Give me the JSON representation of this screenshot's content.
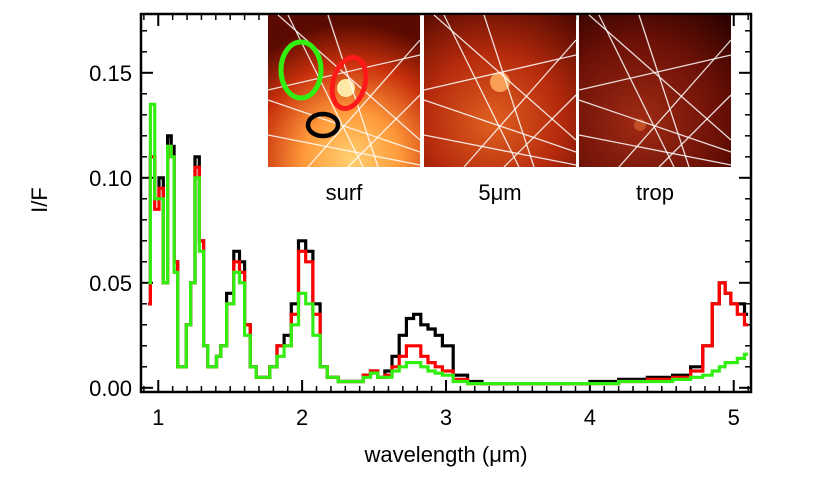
{
  "chart_data": {
    "type": "line",
    "title": "",
    "xlabel": "wavelength (μm)",
    "ylabel": "I/F",
    "xlim": [
      0.88,
      5.12
    ],
    "ylim": [
      -0.002,
      0.178
    ],
    "xticks": [
      {
        "value": 1,
        "label": "1"
      },
      {
        "value": 2,
        "label": "2"
      },
      {
        "value": 3,
        "label": "3"
      },
      {
        "value": 4,
        "label": "4"
      },
      {
        "value": 5,
        "label": "5"
      }
    ],
    "yticks": [
      {
        "value": 0.0,
        "label": "0.00"
      },
      {
        "value": 0.05,
        "label": "0.05"
      },
      {
        "value": 0.1,
        "label": "0.10"
      },
      {
        "value": 0.15,
        "label": "0.15"
      }
    ],
    "x": [
      0.93,
      0.96,
      0.99,
      1.02,
      1.05,
      1.08,
      1.1,
      1.12,
      1.15,
      1.18,
      1.21,
      1.24,
      1.27,
      1.3,
      1.33,
      1.36,
      1.39,
      1.42,
      1.45,
      1.5,
      1.55,
      1.58,
      1.62,
      1.66,
      1.7,
      1.75,
      1.8,
      1.85,
      1.9,
      1.95,
      2.0,
      2.05,
      2.1,
      2.15,
      2.2,
      2.3,
      2.4,
      2.45,
      2.5,
      2.55,
      2.6,
      2.65,
      2.7,
      2.75,
      2.8,
      2.85,
      2.9,
      2.95,
      3.0,
      3.1,
      3.2,
      3.3,
      3.5,
      3.7,
      3.9,
      4.1,
      4.3,
      4.5,
      4.65,
      4.75,
      4.82,
      4.88,
      4.92,
      4.96,
      5.0,
      5.05,
      5.1
    ],
    "series": [
      {
        "name": "black",
        "color": "#000000",
        "values": [
          0.04,
          0.11,
          0.09,
          0.1,
          0.05,
          0.12,
          0.115,
          0.06,
          0.01,
          0.01,
          0.03,
          0.05,
          0.11,
          0.07,
          0.02,
          0.01,
          0.01,
          0.015,
          0.02,
          0.045,
          0.065,
          0.06,
          0.03,
          0.01,
          0.005,
          0.005,
          0.01,
          0.02,
          0.025,
          0.04,
          0.07,
          0.065,
          0.04,
          0.01,
          0.005,
          0.003,
          0.003,
          0.006,
          0.008,
          0.005,
          0.008,
          0.015,
          0.025,
          0.033,
          0.035,
          0.03,
          0.028,
          0.025,
          0.02,
          0.006,
          0.003,
          0.002,
          0.002,
          0.002,
          0.002,
          0.003,
          0.004,
          0.005,
          0.006,
          0.01,
          0.02,
          0.04,
          0.05,
          0.045,
          0.04,
          0.04,
          0.035
        ]
      },
      {
        "name": "red",
        "color": "#ff0000",
        "values": [
          0.04,
          0.11,
          0.085,
          0.095,
          0.05,
          0.115,
          0.11,
          0.06,
          0.01,
          0.01,
          0.03,
          0.05,
          0.105,
          0.07,
          0.02,
          0.01,
          0.01,
          0.015,
          0.02,
          0.04,
          0.06,
          0.055,
          0.03,
          0.01,
          0.005,
          0.005,
          0.01,
          0.02,
          0.02,
          0.035,
          0.065,
          0.06,
          0.035,
          0.01,
          0.005,
          0.003,
          0.003,
          0.006,
          0.008,
          0.005,
          0.006,
          0.01,
          0.015,
          0.02,
          0.02,
          0.015,
          0.012,
          0.01,
          0.008,
          0.004,
          0.002,
          0.002,
          0.002,
          0.002,
          0.002,
          0.002,
          0.003,
          0.004,
          0.005,
          0.008,
          0.02,
          0.04,
          0.05,
          0.045,
          0.04,
          0.035,
          0.03
        ]
      },
      {
        "name": "green",
        "color": "#33ee11",
        "values": [
          0.05,
          0.135,
          0.09,
          0.09,
          0.05,
          0.115,
          0.11,
          0.055,
          0.01,
          0.01,
          0.03,
          0.05,
          0.1,
          0.065,
          0.02,
          0.01,
          0.01,
          0.015,
          0.02,
          0.04,
          0.055,
          0.05,
          0.025,
          0.01,
          0.005,
          0.005,
          0.01,
          0.015,
          0.02,
          0.03,
          0.045,
          0.04,
          0.025,
          0.01,
          0.005,
          0.003,
          0.003,
          0.005,
          0.007,
          0.005,
          0.005,
          0.008,
          0.01,
          0.012,
          0.012,
          0.01,
          0.008,
          0.007,
          0.006,
          0.003,
          0.002,
          0.002,
          0.002,
          0.002,
          0.002,
          0.002,
          0.003,
          0.003,
          0.004,
          0.005,
          0.006,
          0.008,
          0.01,
          0.012,
          0.012,
          0.014,
          0.016
        ]
      }
    ],
    "inset_panels": [
      {
        "label": "surf"
      },
      {
        "label": "5μm"
      },
      {
        "label": "trop"
      }
    ]
  }
}
